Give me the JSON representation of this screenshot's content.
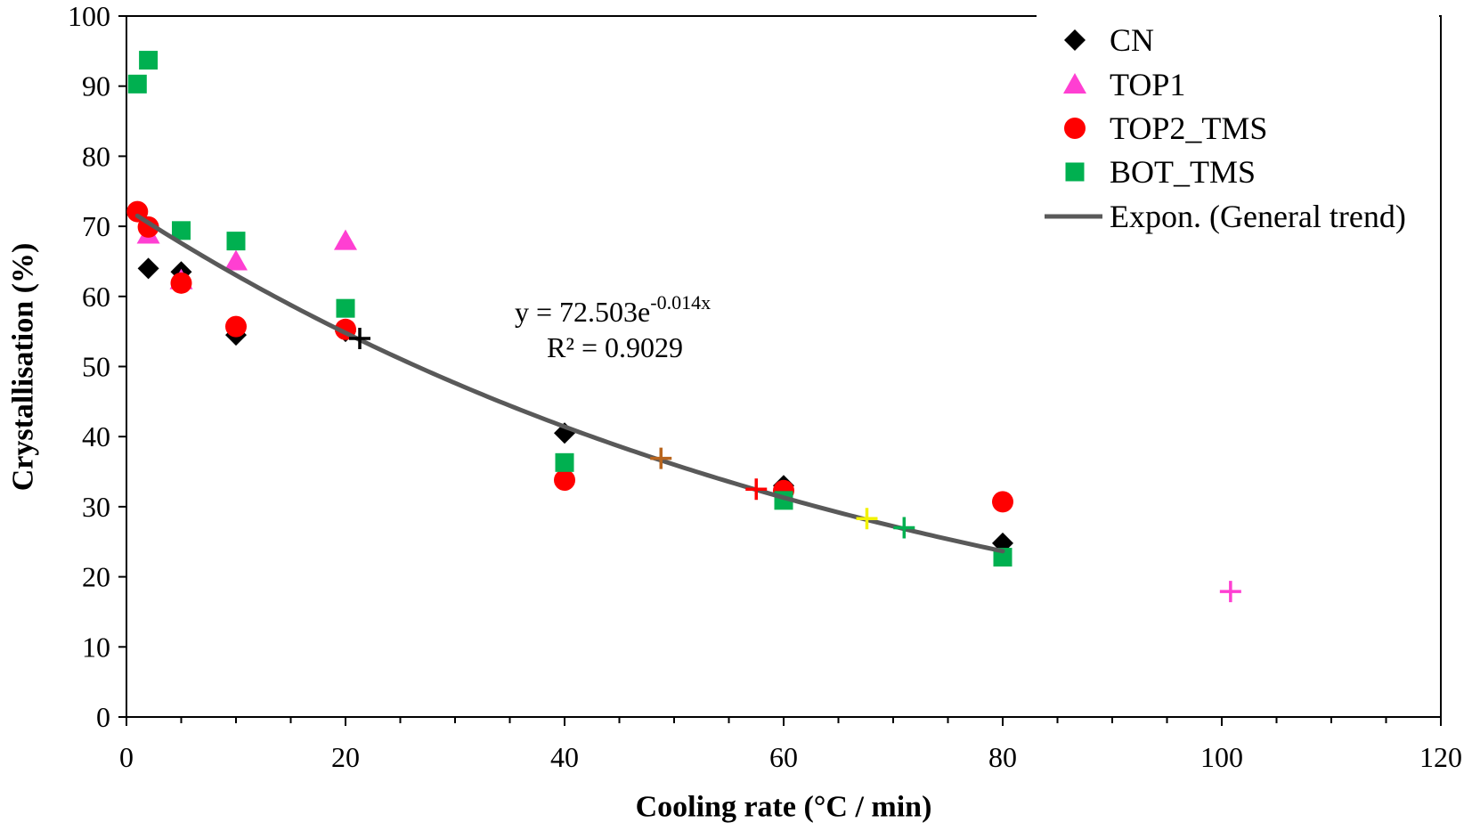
{
  "chart_data": {
    "type": "scatter",
    "title": "",
    "xlabel": "Cooling rate (°C / min)",
    "ylabel": "Crystallisation (%)",
    "xlim": [
      0,
      120
    ],
    "ylim": [
      0,
      100
    ],
    "xticks": [
      0,
      20,
      40,
      60,
      80,
      100,
      120
    ],
    "x_minor_step": 5,
    "yticks": [
      0,
      10,
      20,
      30,
      40,
      50,
      60,
      70,
      80,
      90,
      100
    ],
    "grid": false,
    "legend": "top-right",
    "series": [
      {
        "name": "CN",
        "marker": "diamond",
        "color": "#000000",
        "points": [
          [
            2,
            64
          ],
          [
            5,
            63.5
          ],
          [
            10,
            54.5
          ],
          [
            20,
            55
          ],
          [
            40,
            40.5
          ],
          [
            60,
            33
          ],
          [
            80,
            24.8
          ]
        ]
      },
      {
        "name": "TOP1",
        "marker": "triangle",
        "color": "#ff3fd2",
        "points": [
          [
            2,
            68.8
          ],
          [
            5,
            62.3
          ],
          [
            10,
            65
          ],
          [
            20,
            67.9
          ]
        ]
      },
      {
        "name": "TOP2_TMS",
        "marker": "circle",
        "color": "#ff0000",
        "points": [
          [
            1,
            72.1
          ],
          [
            2,
            69.9
          ],
          [
            5,
            61.9
          ],
          [
            10,
            55.7
          ],
          [
            20,
            55.3
          ],
          [
            40,
            33.8
          ],
          [
            60,
            32.3
          ],
          [
            80,
            30.7
          ]
        ]
      },
      {
        "name": "BOT_TMS",
        "marker": "square",
        "color": "#00b050",
        "points": [
          [
            1,
            90.3
          ],
          [
            2,
            93.7
          ],
          [
            5,
            69.4
          ],
          [
            10,
            67.9
          ],
          [
            20,
            58.3
          ],
          [
            40,
            36.3
          ],
          [
            60,
            30.9
          ],
          [
            80,
            22.8
          ]
        ]
      }
    ],
    "unlabeled_points": [
      {
        "marker": "plus",
        "color": "#000000",
        "x": 21.3,
        "y": 54.0
      },
      {
        "marker": "plus",
        "color": "#b8651e",
        "x": 48.8,
        "y": 36.9
      },
      {
        "marker": "plus",
        "color": "#ff0000",
        "x": 57.5,
        "y": 32.5
      },
      {
        "marker": "plus",
        "color": "#f2f200",
        "x": 67.6,
        "y": 28.3
      },
      {
        "marker": "plus",
        "color": "#00b050",
        "x": 71.0,
        "y": 27.0
      },
      {
        "marker": "plus",
        "color": "#ff3fd2",
        "x": 100.8,
        "y": 17.9
      }
    ],
    "trendline": {
      "label": "Expon. (General trend)",
      "model": "exponential",
      "a": 72.503,
      "b": -0.014,
      "x_range": [
        1,
        80
      ],
      "color": "#595959",
      "equation": "y = 72.503e",
      "equation_exponent": "-0.014x",
      "r_squared_text": "R² = 0.9029"
    }
  }
}
